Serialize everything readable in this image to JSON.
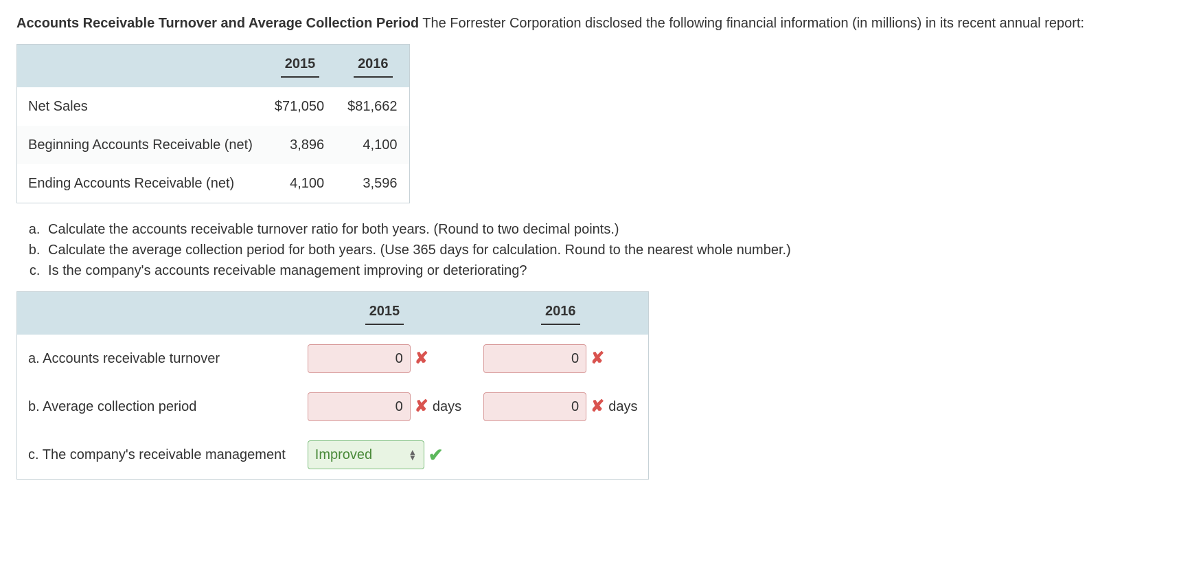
{
  "intro": {
    "bold": "Accounts Receivable Turnover and Average Collection Period",
    "rest": " The Forrester Corporation disclosed the following financial information (in millions) in its recent annual report:"
  },
  "data_table": {
    "years": [
      "2015",
      "2016"
    ],
    "rows": [
      {
        "label": "Net Sales",
        "v2015": "$71,050",
        "v2016": "$81,662"
      },
      {
        "label": "Beginning Accounts Receivable (net)",
        "v2015": "3,896",
        "v2016": "4,100"
      },
      {
        "label": "Ending Accounts Receivable (net)",
        "v2015": "4,100",
        "v2016": "3,596"
      }
    ]
  },
  "questions": {
    "a": "Calculate the accounts receivable turnover ratio for both years. (Round to two decimal points.)",
    "b": "Calculate the average collection period for both years. (Use 365 days for calculation. Round to the nearest whole number.)",
    "c": "Is the company's accounts receivable management improving or deteriorating?"
  },
  "answers_table": {
    "years": [
      "2015",
      "2016"
    ],
    "rows": {
      "a": {
        "label": "a. Accounts receivable turnover",
        "v2015": {
          "value": "0",
          "status": "wrong",
          "unit": ""
        },
        "v2016": {
          "value": "0",
          "status": "wrong",
          "unit": ""
        }
      },
      "b": {
        "label": "b. Average collection period",
        "v2015": {
          "value": "0",
          "status": "wrong",
          "unit": "days"
        },
        "v2016": {
          "value": "0",
          "status": "wrong",
          "unit": "days"
        }
      },
      "c": {
        "label": "c. The company's receivable management",
        "select": {
          "value": "Improved",
          "status": "correct"
        }
      }
    }
  },
  "colors": {
    "header_bg": "#d1e2e8",
    "border": "#c7d2d7",
    "wrong_bg": "#f7e4e4",
    "wrong_border": "#d89a9a",
    "wrong_mark": "#d9534f",
    "correct_bg": "#e8f4e3",
    "correct_border": "#7fbf7f",
    "correct_mark": "#5cb85c"
  }
}
